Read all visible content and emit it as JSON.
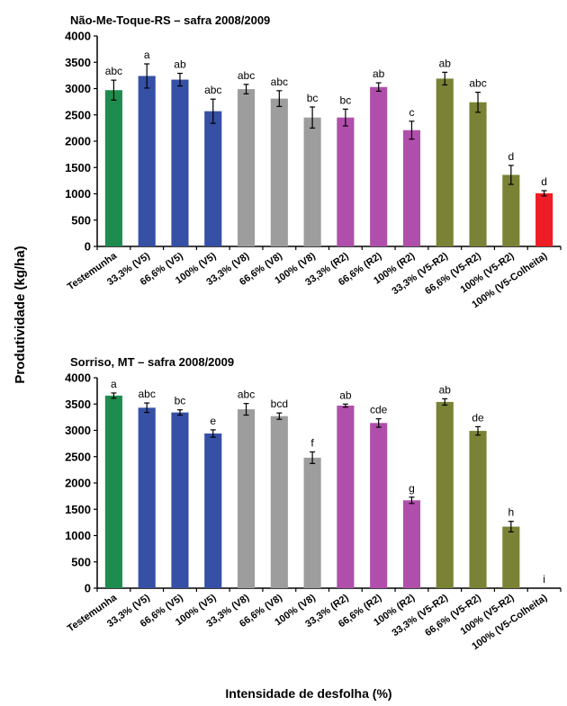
{
  "figure": {
    "ylabel": "Produtividade (kg/ha)",
    "xlabel": "Intensidade de desfolha (%)"
  },
  "chart_data": [
    {
      "type": "bar",
      "title": "Não-Me-Toque-RS – safra 2008/2009",
      "categories": [
        "Testemunha",
        "33,3% (V5)",
        "66,6% (V5)",
        "100% (V5)",
        "33,3% (V8)",
        "66,6% (V8)",
        "100% (V8)",
        "33,3% (R2)",
        "66,6% (R2)",
        "100% (R2)",
        "33,3% (V5-R2)",
        "66,6% (V5-R2)",
        "100% (V5-R2)",
        "100% (V5-Colheita)"
      ],
      "values": [
        2970,
        3240,
        3170,
        2570,
        2990,
        2810,
        2450,
        2450,
        3030,
        2210,
        3190,
        2740,
        1360,
        1010
      ],
      "errors": [
        190,
        230,
        120,
        230,
        90,
        150,
        200,
        160,
        80,
        170,
        120,
        190,
        180,
        50
      ],
      "letters": [
        "abc",
        "a",
        "ab",
        "abc",
        "abc",
        "abc",
        "bc",
        "bc",
        "ab",
        "c",
        "ab",
        "abc",
        "d",
        "d"
      ],
      "colors": [
        "#1e8c4e",
        "#3550a5",
        "#3550a5",
        "#3550a5",
        "#9d9d9d",
        "#9d9d9d",
        "#9d9d9d",
        "#b04fab",
        "#b04fab",
        "#b04fab",
        "#7a8235",
        "#7a8235",
        "#7a8235",
        "#ee1c24"
      ],
      "ylim": [
        0,
        4000
      ],
      "yticks": [
        0,
        500,
        1000,
        1500,
        2000,
        2500,
        3000,
        3500,
        4000
      ]
    },
    {
      "type": "bar",
      "title": "Sorriso, MT – safra 2008/2009",
      "categories": [
        "Testemunha",
        "33,3% (V5)",
        "66,6% (V5)",
        "100% (V5)",
        "33,3% (V8)",
        "66,6% (V8)",
        "100% (V8)",
        "33,3% (R2)",
        "66,6% (R2)",
        "100% (R2)",
        "33,3% (V5-R2)",
        "66,6% (V5-R2)",
        "100% (V5-R2)",
        "100% (V5-Colheita)"
      ],
      "values": [
        3660,
        3430,
        3340,
        2940,
        3400,
        3270,
        2480,
        3470,
        3140,
        1670,
        3540,
        2990,
        1170,
        0
      ],
      "errors": [
        50,
        90,
        50,
        70,
        110,
        60,
        110,
        30,
        80,
        60,
        60,
        80,
        100,
        0
      ],
      "letters": [
        "a",
        "abc",
        "bc",
        "e",
        "abc",
        "bcd",
        "f",
        "ab",
        "cde",
        "g",
        "ab",
        "de",
        "h",
        "i"
      ],
      "colors": [
        "#1e8c4e",
        "#3550a5",
        "#3550a5",
        "#3550a5",
        "#9d9d9d",
        "#9d9d9d",
        "#9d9d9d",
        "#b04fab",
        "#b04fab",
        "#b04fab",
        "#7a8235",
        "#7a8235",
        "#7a8235",
        "#ee1c24"
      ],
      "ylim": [
        0,
        4000
      ],
      "yticks": [
        0,
        500,
        1000,
        1500,
        2000,
        2500,
        3000,
        3500,
        4000
      ]
    }
  ]
}
